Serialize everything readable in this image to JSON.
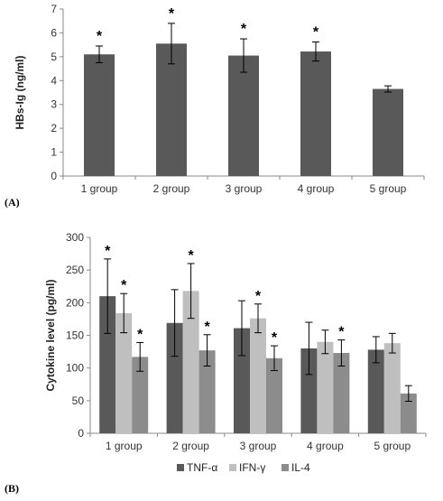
{
  "chart_data": [
    {
      "panel_label": "(A)",
      "type": "bar",
      "categories": [
        "1 group",
        "2 group",
        "3 group",
        "4 group",
        "5 group"
      ],
      "series": [
        {
          "values": [
            5.1,
            5.55,
            5.05,
            5.22,
            3.65
          ],
          "errors": [
            0.35,
            0.85,
            0.7,
            0.4,
            0.13
          ],
          "color": "#595959"
        }
      ],
      "significance": [
        true,
        true,
        true,
        true,
        false
      ],
      "star": "*",
      "ylabel": "HBs-Ig (ng/ml)",
      "ylim": [
        0,
        7
      ],
      "yticks": [
        "0",
        "1",
        "2",
        "3",
        "4",
        "5",
        "6",
        "7"
      ],
      "grid": false
    },
    {
      "panel_label": "(B)",
      "type": "bar",
      "categories": [
        "1 group",
        "2 group",
        "3 group",
        "4 group",
        "5 group"
      ],
      "series": [
        {
          "name": "TNF-α",
          "values": [
            210,
            169,
            161,
            130,
            128
          ],
          "errors": [
            57,
            51,
            42,
            40,
            20
          ],
          "significance": [
            true,
            false,
            false,
            false,
            false
          ],
          "color": "#595959"
        },
        {
          "name": "IFN-γ",
          "values": [
            184,
            218,
            176,
            140,
            138
          ],
          "errors": [
            30,
            42,
            22,
            18,
            15
          ],
          "significance": [
            true,
            true,
            true,
            false,
            false
          ],
          "color": "#bfbfbf"
        },
        {
          "name": "IL-4",
          "values": [
            117,
            127,
            115,
            123,
            61
          ],
          "errors": [
            22,
            24,
            19,
            20,
            12
          ],
          "significance": [
            true,
            true,
            true,
            true,
            false
          ],
          "color": "#8c8c8c"
        }
      ],
      "star": "*",
      "ylabel": "Cytokine level (pg/ml)",
      "ylim": [
        0,
        300
      ],
      "yticks": [
        "0",
        "50",
        "100",
        "150",
        "200",
        "250",
        "300"
      ],
      "legend_position": "bottom",
      "grid": false
    }
  ]
}
